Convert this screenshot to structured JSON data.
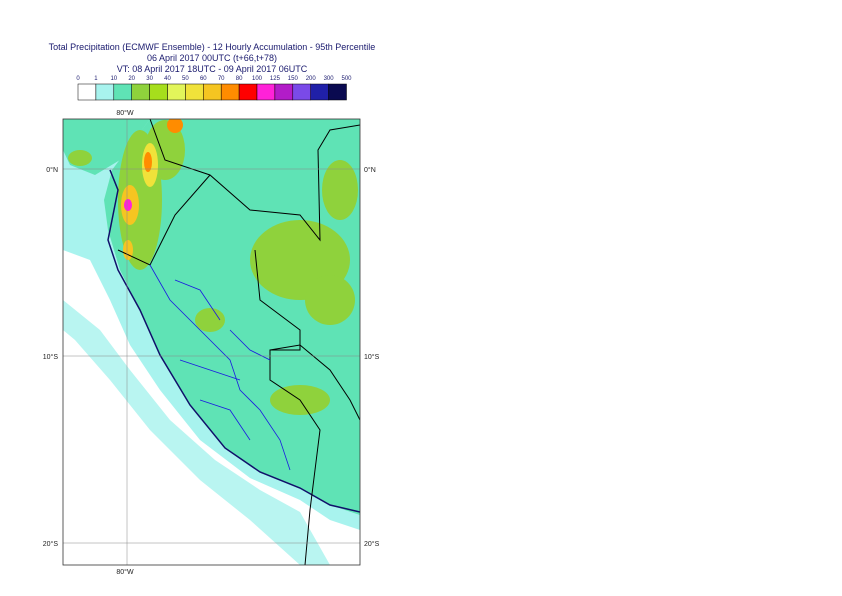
{
  "title_lines": [
    "Total Precipitation (ECMWF Ensemble) - 12 Hourly Accumulation - 95th Percentile",
    "06 April 2017 00UTC (t+66,t+78)",
    "VT: 08 April 2017 18UTC - 09 April 2017 06UTC"
  ],
  "legend": {
    "labels": [
      0,
      1,
      10,
      20,
      30,
      40,
      50,
      60,
      70,
      80,
      100,
      125,
      150,
      200,
      300,
      500
    ],
    "colors": [
      "#ffffff",
      "#a8f3ee",
      "#5fe3b5",
      "#8fd23c",
      "#a6de1c",
      "#e2f55a",
      "#f0e23a",
      "#f5c521",
      "#ff8c00",
      "#ff0000",
      "#ff22d8",
      "#b21cc8",
      "#7a4ae8",
      "#2020a8",
      "#0a0a50"
    ]
  },
  "map": {
    "lon_labels": [
      "80°W",
      "80°W"
    ],
    "lat_labels": [
      "0°N",
      "0°N",
      "10°S",
      "10°S",
      "20°S",
      "20°S"
    ]
  }
}
